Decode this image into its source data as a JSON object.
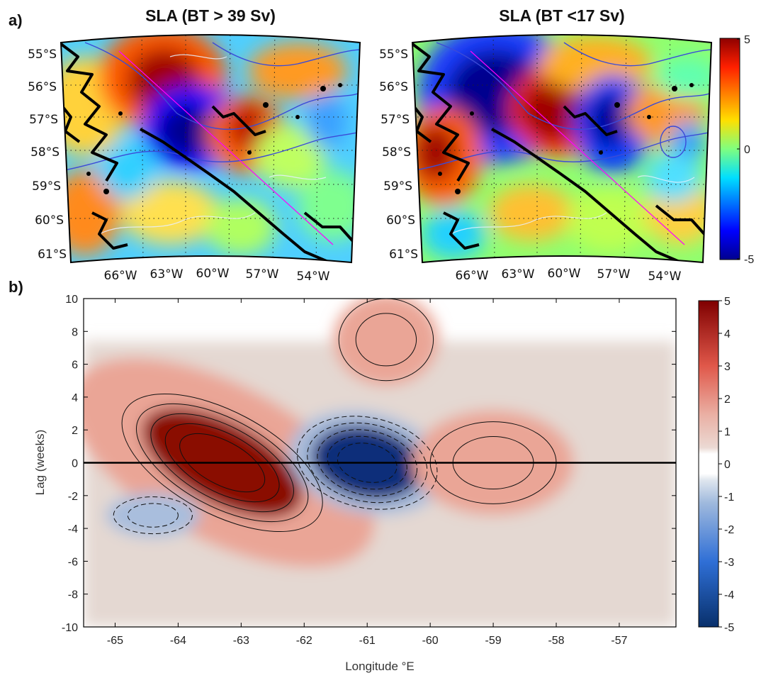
{
  "panel_a": {
    "label": "a)",
    "maps": [
      {
        "title": "SLA (BT > 39 Sv)",
        "lat_labels": [
          "55°S",
          "56°S",
          "57°S",
          "58°S",
          "59°S",
          "60°S",
          "61°S"
        ],
        "lon_labels": [
          "66°W",
          "63°W",
          "60°W",
          "57°W",
          "54°W"
        ]
      },
      {
        "title": "SLA (BT <17 Sv)",
        "lat_labels": [
          "55°S",
          "56°S",
          "57°S",
          "58°S",
          "59°S",
          "60°S",
          "61°S"
        ],
        "lon_labels": [
          "66°W",
          "63°W",
          "60°W",
          "57°W",
          "54°W"
        ]
      }
    ],
    "colorbar": {
      "ticks": [
        "5",
        "0",
        "-5"
      ],
      "colors": [
        "#00008f",
        "#0050ff",
        "#00dfff",
        "#8fff70",
        "#ffdf00",
        "#ff5000",
        "#8f0000"
      ]
    }
  },
  "panel_b": {
    "label": "b)",
    "colorbar": {
      "ticks": [
        "5",
        "4",
        "3",
        "2",
        "1",
        "0",
        "-1",
        "-2",
        "-3",
        "-4",
        "-5"
      ]
    }
  },
  "chart_data": [
    {
      "type": "heatmap",
      "title": "SLA (BT > 39 Sv)",
      "xticks": [
        "66°W",
        "63°W",
        "60°W",
        "57°W",
        "54°W"
      ],
      "yticks": [
        "55°S",
        "56°S",
        "57°S",
        "58°S",
        "59°S",
        "60°S",
        "61°S"
      ],
      "colorbar_range": [
        -5,
        5
      ],
      "features": [
        {
          "sign": "positive",
          "lon": -62.5,
          "lat": -56.0,
          "magnitude": 5
        },
        {
          "sign": "negative",
          "lon": -59.5,
          "lat": -57.3,
          "magnitude": -5
        },
        {
          "sign": "positive",
          "lon": -56.8,
          "lat": -57.5,
          "magnitude": 4
        }
      ]
    },
    {
      "type": "heatmap",
      "title": "SLA (BT <17 Sv)",
      "xticks": [
        "66°W",
        "63°W",
        "60°W",
        "57°W",
        "54°W"
      ],
      "yticks": [
        "55°S",
        "56°S",
        "57°S",
        "58°S",
        "59°S",
        "60°S",
        "61°S"
      ],
      "colorbar_range": [
        -5,
        5
      ],
      "features": [
        {
          "sign": "negative",
          "lon": -63.5,
          "lat": -56.3,
          "magnitude": -5
        },
        {
          "sign": "positive",
          "lon": -59.5,
          "lat": -56.8,
          "magnitude": 5
        },
        {
          "sign": "negative",
          "lon": -56.5,
          "lat": -57.2,
          "magnitude": -4
        },
        {
          "sign": "positive",
          "lon": -66.5,
          "lat": -58.2,
          "magnitude": 4
        }
      ]
    },
    {
      "type": "heatmap",
      "title": "",
      "xlabel": "Longitude °E",
      "ylabel": "Lag (weeks)",
      "xticks": [
        -65,
        -64,
        -63,
        -62,
        -61,
        -60,
        -59,
        -58,
        -57
      ],
      "yticks": [
        10,
        8,
        6,
        4,
        2,
        0,
        -2,
        -4,
        -6,
        -8,
        -10
      ],
      "xlim": [
        -65.5,
        -56.1
      ],
      "ylim": [
        -10,
        10
      ],
      "colorbar_range": [
        -5,
        5
      ],
      "zero_lag_line": 0,
      "features": [
        {
          "sign": "positive",
          "lon": -63.3,
          "lag": 0,
          "magnitude": 5
        },
        {
          "sign": "negative",
          "lon": -61.0,
          "lag": 0,
          "magnitude": -5
        },
        {
          "sign": "positive",
          "lon": -59.0,
          "lag": 0,
          "magnitude": 2
        },
        {
          "sign": "positive",
          "lon": -60.7,
          "lag": 7.5,
          "magnitude": 1.5
        },
        {
          "sign": "negative",
          "lon": -64.4,
          "lag": -3.2,
          "magnitude": -1.5
        }
      ]
    }
  ]
}
